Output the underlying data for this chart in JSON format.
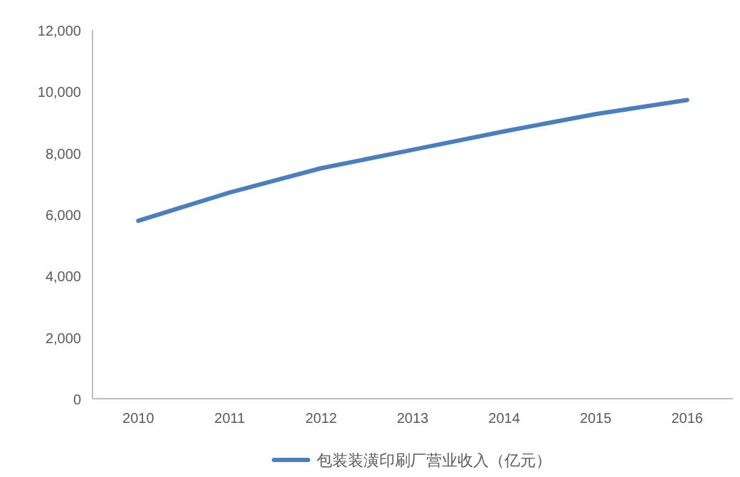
{
  "chart_data": {
    "type": "line",
    "categories": [
      "2010",
      "2011",
      "2012",
      "2013",
      "2014",
      "2015",
      "2016"
    ],
    "series": [
      {
        "name": "包装装潢印刷厂营业收入（亿元）",
        "color": "#4a7ebf",
        "values": [
          5790,
          6710,
          7500,
          8100,
          8700,
          9260,
          9720
        ]
      }
    ],
    "ylim": [
      0,
      12000
    ],
    "yticks": [
      0,
      {
        "value": 2000,
        "label": "2,000"
      },
      {
        "value": 4000,
        "label": "4,000"
      },
      {
        "value": 6000,
        "label": "6,000"
      },
      {
        "value": 8000,
        "label": "8,000"
      },
      {
        "value": 10000,
        "label": "10,000"
      },
      {
        "value": 12000,
        "label": "12,000"
      }
    ],
    "grid": false,
    "legend": "bottom",
    "marker": "none",
    "line_style": "solid"
  }
}
